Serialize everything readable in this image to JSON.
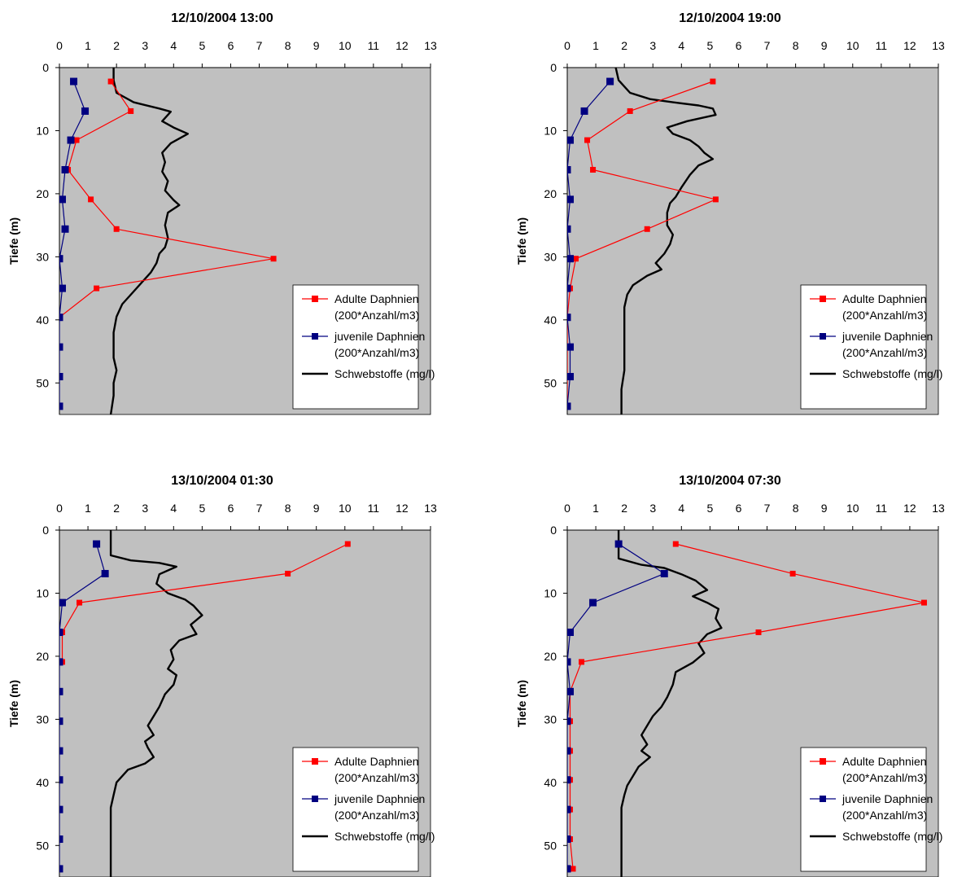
{
  "colors": {
    "plot_background": "#c0c0c0",
    "adult": "#ff0000",
    "juvenile": "#000080",
    "seston": "#000000"
  },
  "legend_entries": [
    {
      "label_lines": [
        "Adulte Daphnien",
        "(200*Anzahl/m3)"
      ],
      "color": "#ff0000",
      "marker": "square"
    },
    {
      "label_lines": [
        "juvenile Daphnien",
        "(200*Anzahl/m3)"
      ],
      "color": "#000080",
      "marker": "square"
    },
    {
      "label_lines": [
        "Schwebstoffe (mg/l)"
      ],
      "color": "#000000",
      "marker": "none"
    }
  ],
  "chart_data": [
    {
      "type": "line",
      "title": "12/10/2004 13:00",
      "ylabel": "Tiefe (m)",
      "xlim": [
        0,
        13
      ],
      "ylim": [
        0,
        55
      ],
      "y_inverted": true,
      "x_axis_position": "top",
      "xticks": [
        0,
        1,
        2,
        3,
        4,
        5,
        6,
        7,
        8,
        9,
        10,
        11,
        12,
        13
      ],
      "yticks": [
        0,
        10,
        20,
        30,
        40,
        50
      ],
      "legend_position": "bottom-right",
      "grid": false,
      "series": [
        {
          "name": "Adulte Daphnien (200*Anzahl/m3)",
          "x": [
            1.8,
            2.5,
            0.6,
            0.3,
            1.1,
            2.0,
            7.5,
            1.3,
            0.0
          ],
          "y": [
            2.2,
            6.9,
            11.5,
            16.2,
            20.9,
            25.6,
            30.3,
            35.0,
            39.6
          ]
        },
        {
          "name": "juvenile Daphnien (200*Anzahl/m3)",
          "x": [
            0.5,
            0.9,
            0.4,
            0.2,
            0.1,
            0.2,
            0.0,
            0.1,
            0.0,
            0.0,
            0.0,
            0.0
          ],
          "y": [
            2.2,
            6.9,
            11.5,
            16.2,
            20.9,
            25.6,
            30.3,
            35.0,
            39.6,
            44.3,
            49.0,
            53.7
          ]
        },
        {
          "name": "Schwebstoffe (mg/l)",
          "x": [
            1.9,
            1.9,
            2.0,
            2.6,
            3.5,
            3.9,
            3.6,
            4.0,
            4.5,
            3.9,
            3.6,
            3.7,
            3.6,
            3.8,
            3.7,
            4.0,
            4.2,
            3.8,
            3.7,
            3.8,
            3.7,
            3.5,
            3.4,
            3.2,
            2.9,
            2.6,
            2.2,
            2.0,
            1.9,
            1.9,
            1.9,
            2.0,
            1.9,
            1.9,
            1.8
          ],
          "y": [
            0,
            2,
            4,
            5.5,
            6.5,
            7,
            8.5,
            9.5,
            10.5,
            12,
            13.5,
            15,
            16.5,
            18,
            19.5,
            21,
            21.8,
            23,
            25,
            27,
            28.5,
            29.5,
            31,
            32.5,
            34,
            35.5,
            37.5,
            39.5,
            42,
            44,
            46,
            48,
            50,
            52,
            55
          ]
        }
      ]
    },
    {
      "type": "line",
      "title": "12/10/2004 19:00",
      "ylabel": "Tiefe (m)",
      "xlim": [
        0,
        13
      ],
      "ylim": [
        0,
        55
      ],
      "y_inverted": true,
      "x_axis_position": "top",
      "xticks": [
        0,
        1,
        2,
        3,
        4,
        5,
        6,
        7,
        8,
        9,
        10,
        11,
        12,
        13
      ],
      "yticks": [
        0,
        10,
        20,
        30,
        40,
        50
      ],
      "legend_position": "bottom-right",
      "grid": false,
      "series": [
        {
          "name": "Adulte Daphnien (200*Anzahl/m3)",
          "x": [
            5.1,
            2.2,
            0.7,
            0.9,
            5.2,
            2.8,
            0.3,
            0.1,
            0.0,
            0.0,
            0.0,
            0.0
          ],
          "y": [
            2.2,
            6.9,
            11.5,
            16.2,
            20.9,
            25.6,
            30.3,
            35.0,
            39.6,
            44.3,
            49.0,
            53.7
          ]
        },
        {
          "name": "juvenile Daphnien (200*Anzahl/m3)",
          "x": [
            1.5,
            0.6,
            0.1,
            0.0,
            0.1,
            0.0,
            0.1,
            0.0,
            0.0,
            0.1,
            0.1,
            0.0
          ],
          "y": [
            2.2,
            6.9,
            11.5,
            16.2,
            20.9,
            25.6,
            30.3,
            35.0,
            39.6,
            44.3,
            49.0,
            53.7
          ]
        },
        {
          "name": "Schwebstoffe (mg/l)",
          "x": [
            1.7,
            1.8,
            2.2,
            2.9,
            3.7,
            4.6,
            5.1,
            5.2,
            4.2,
            3.5,
            3.7,
            4.3,
            4.6,
            4.8,
            5.1,
            4.6,
            4.3,
            4.0,
            3.8,
            3.6,
            3.5,
            3.5,
            3.7,
            3.6,
            3.4,
            3.1,
            3.3,
            2.8,
            2.3,
            2.1,
            2.0,
            2.0,
            2.0,
            2.0,
            1.9,
            1.9,
            1.9
          ],
          "y": [
            0,
            2,
            4,
            5,
            5.5,
            6,
            6.5,
            7.5,
            8.5,
            9.5,
            10.5,
            11.5,
            12.5,
            13.5,
            14.5,
            15.5,
            17,
            19,
            20.5,
            21.5,
            23,
            25,
            26.5,
            28,
            29.5,
            31,
            32,
            33,
            34.5,
            36,
            38,
            40,
            44,
            48,
            51,
            53,
            55
          ]
        }
      ]
    },
    {
      "type": "line",
      "title": "13/10/2004 01:30",
      "ylabel": "Tiefe (m)",
      "xlim": [
        0,
        13
      ],
      "ylim": [
        0,
        55
      ],
      "y_inverted": true,
      "x_axis_position": "top",
      "xticks": [
        0,
        1,
        2,
        3,
        4,
        5,
        6,
        7,
        8,
        9,
        10,
        11,
        12,
        13
      ],
      "yticks": [
        0,
        10,
        20,
        30,
        40,
        50
      ],
      "legend_position": "bottom-right",
      "grid": false,
      "series": [
        {
          "name": "Adulte Daphnien (200*Anzahl/m3)",
          "x": [
            10.1,
            8.0,
            0.7,
            0.1,
            0.1
          ],
          "y": [
            2.2,
            6.9,
            11.5,
            16.2,
            20.9
          ]
        },
        {
          "name": "juvenile Daphnien (200*Anzahl/m3)",
          "x": [
            1.3,
            1.6,
            0.1,
            0.0,
            0.0,
            0.0,
            0.0,
            0.0,
            0.0,
            0.0,
            0.0,
            0.0
          ],
          "y": [
            2.2,
            6.9,
            11.5,
            16.2,
            20.9,
            25.6,
            30.3,
            35.0,
            39.6,
            44.3,
            49.0,
            53.7
          ]
        },
        {
          "name": "Schwebstoffe (mg/l)",
          "x": [
            1.8,
            1.8,
            1.8,
            2.5,
            3.5,
            4.1,
            3.5,
            3.4,
            3.8,
            4.4,
            4.7,
            5.0,
            4.6,
            4.8,
            4.2,
            3.9,
            4.0,
            3.8,
            4.1,
            4.0,
            3.7,
            3.5,
            3.3,
            3.1,
            3.3,
            3.0,
            3.1,
            3.3,
            3.0,
            2.4,
            2.0,
            1.9,
            1.8,
            1.8,
            1.8,
            1.8,
            1.8
          ],
          "y": [
            0,
            2,
            4,
            4.8,
            5.2,
            5.8,
            7,
            8.5,
            10,
            11,
            12,
            13.5,
            15,
            16.5,
            17.5,
            19,
            20.5,
            22,
            23,
            24.5,
            26,
            28,
            29.5,
            31,
            32.5,
            33.5,
            34.5,
            36,
            37,
            38,
            40,
            42,
            44,
            46,
            48,
            52,
            55
          ]
        }
      ]
    },
    {
      "type": "line",
      "title": "13/10/2004 07:30",
      "ylabel": "Tiefe (m)",
      "xlim": [
        0,
        13
      ],
      "ylim": [
        0,
        55
      ],
      "y_inverted": true,
      "x_axis_position": "top",
      "xticks": [
        0,
        1,
        2,
        3,
        4,
        5,
        6,
        7,
        8,
        9,
        10,
        11,
        12,
        13
      ],
      "yticks": [
        0,
        10,
        20,
        30,
        40,
        50
      ],
      "legend_position": "bottom-right",
      "grid": false,
      "series": [
        {
          "name": "Adulte Daphnien (200*Anzahl/m3)",
          "x": [
            3.8,
            7.9,
            12.5,
            6.7,
            0.5,
            0.1,
            0.1,
            0.1,
            0.1,
            0.1,
            0.1,
            0.2
          ],
          "y": [
            2.2,
            6.9,
            11.5,
            16.2,
            20.9,
            25.6,
            30.3,
            35.0,
            39.6,
            44.3,
            49.0,
            53.7
          ]
        },
        {
          "name": "juvenile Daphnien (200*Anzahl/m3)",
          "x": [
            1.8,
            3.4,
            0.9,
            0.1,
            0.0,
            0.1,
            0.0,
            0.0,
            0.0,
            0.0,
            0.0,
            0.0
          ],
          "y": [
            2.2,
            6.9,
            11.5,
            16.2,
            20.9,
            25.6,
            30.3,
            35.0,
            39.6,
            44.3,
            49.0,
            53.7
          ]
        },
        {
          "name": "Schwebstoffe (mg/l)",
          "x": [
            1.8,
            1.8,
            1.8,
            2.6,
            3.4,
            4.0,
            4.5,
            4.9,
            4.4,
            4.9,
            5.3,
            5.2,
            5.4,
            4.9,
            4.6,
            4.8,
            4.4,
            3.8,
            3.7,
            3.5,
            3.3,
            3.0,
            2.8,
            2.6,
            2.8,
            2.6,
            2.9,
            2.5,
            2.3,
            2.1,
            2.0,
            1.9,
            1.9,
            1.9,
            1.9,
            1.9
          ],
          "y": [
            0,
            2,
            4.5,
            5.5,
            6,
            7,
            8,
            9.5,
            10.5,
            11.5,
            12.5,
            14,
            15.5,
            16.5,
            18,
            19.5,
            21,
            22.5,
            24.5,
            26.5,
            28,
            29.5,
            31,
            32.5,
            34,
            35,
            36,
            37.5,
            39,
            40.5,
            42,
            44,
            46,
            48,
            51,
            55
          ]
        }
      ]
    }
  ]
}
